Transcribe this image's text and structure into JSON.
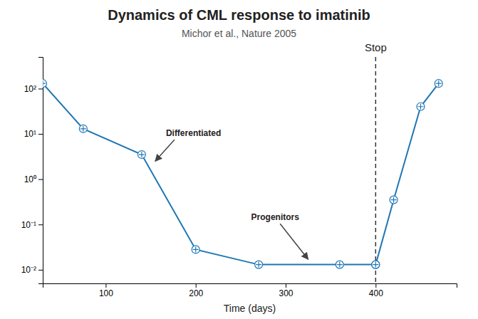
{
  "chart_data": {
    "type": "line",
    "title": "Dynamics of CML response to imatinib",
    "subtitle": "Michor et al., Nature 2005",
    "xlabel": "Time (days)",
    "log": "y",
    "marker": "circle-cross",
    "series": [
      {
        "x": [
          30,
          75,
          140,
          200,
          270,
          360,
          400
        ],
        "values": [
          130,
          13,
          3.5,
          0.028,
          0.013,
          0.013,
          0.013
        ]
      },
      {
        "x": [
          400,
          420,
          450,
          470
        ],
        "values": [
          0.013,
          0.35,
          40,
          130
        ]
      }
    ],
    "xlim": [
      30,
      490
    ],
    "xticks": [
      100,
      200,
      300,
      400
    ],
    "ylim": [
      0.005,
      500
    ],
    "yticks": [
      {
        "value": 0.01,
        "label": "10⁻²"
      },
      {
        "value": 0.1,
        "label": "10⁻¹"
      },
      {
        "value": 1,
        "label": "10⁰"
      },
      {
        "value": 10,
        "label": "10¹"
      },
      {
        "value": 100,
        "label": "10²"
      }
    ],
    "annotations": [
      {
        "text": "Stop",
        "x": 400,
        "line_style": "dashed"
      },
      {
        "text": "Differentiated",
        "x": 155,
        "y": 2.5
      },
      {
        "text": "Progenitors",
        "x": 325,
        "y": 0.017
      }
    ]
  }
}
